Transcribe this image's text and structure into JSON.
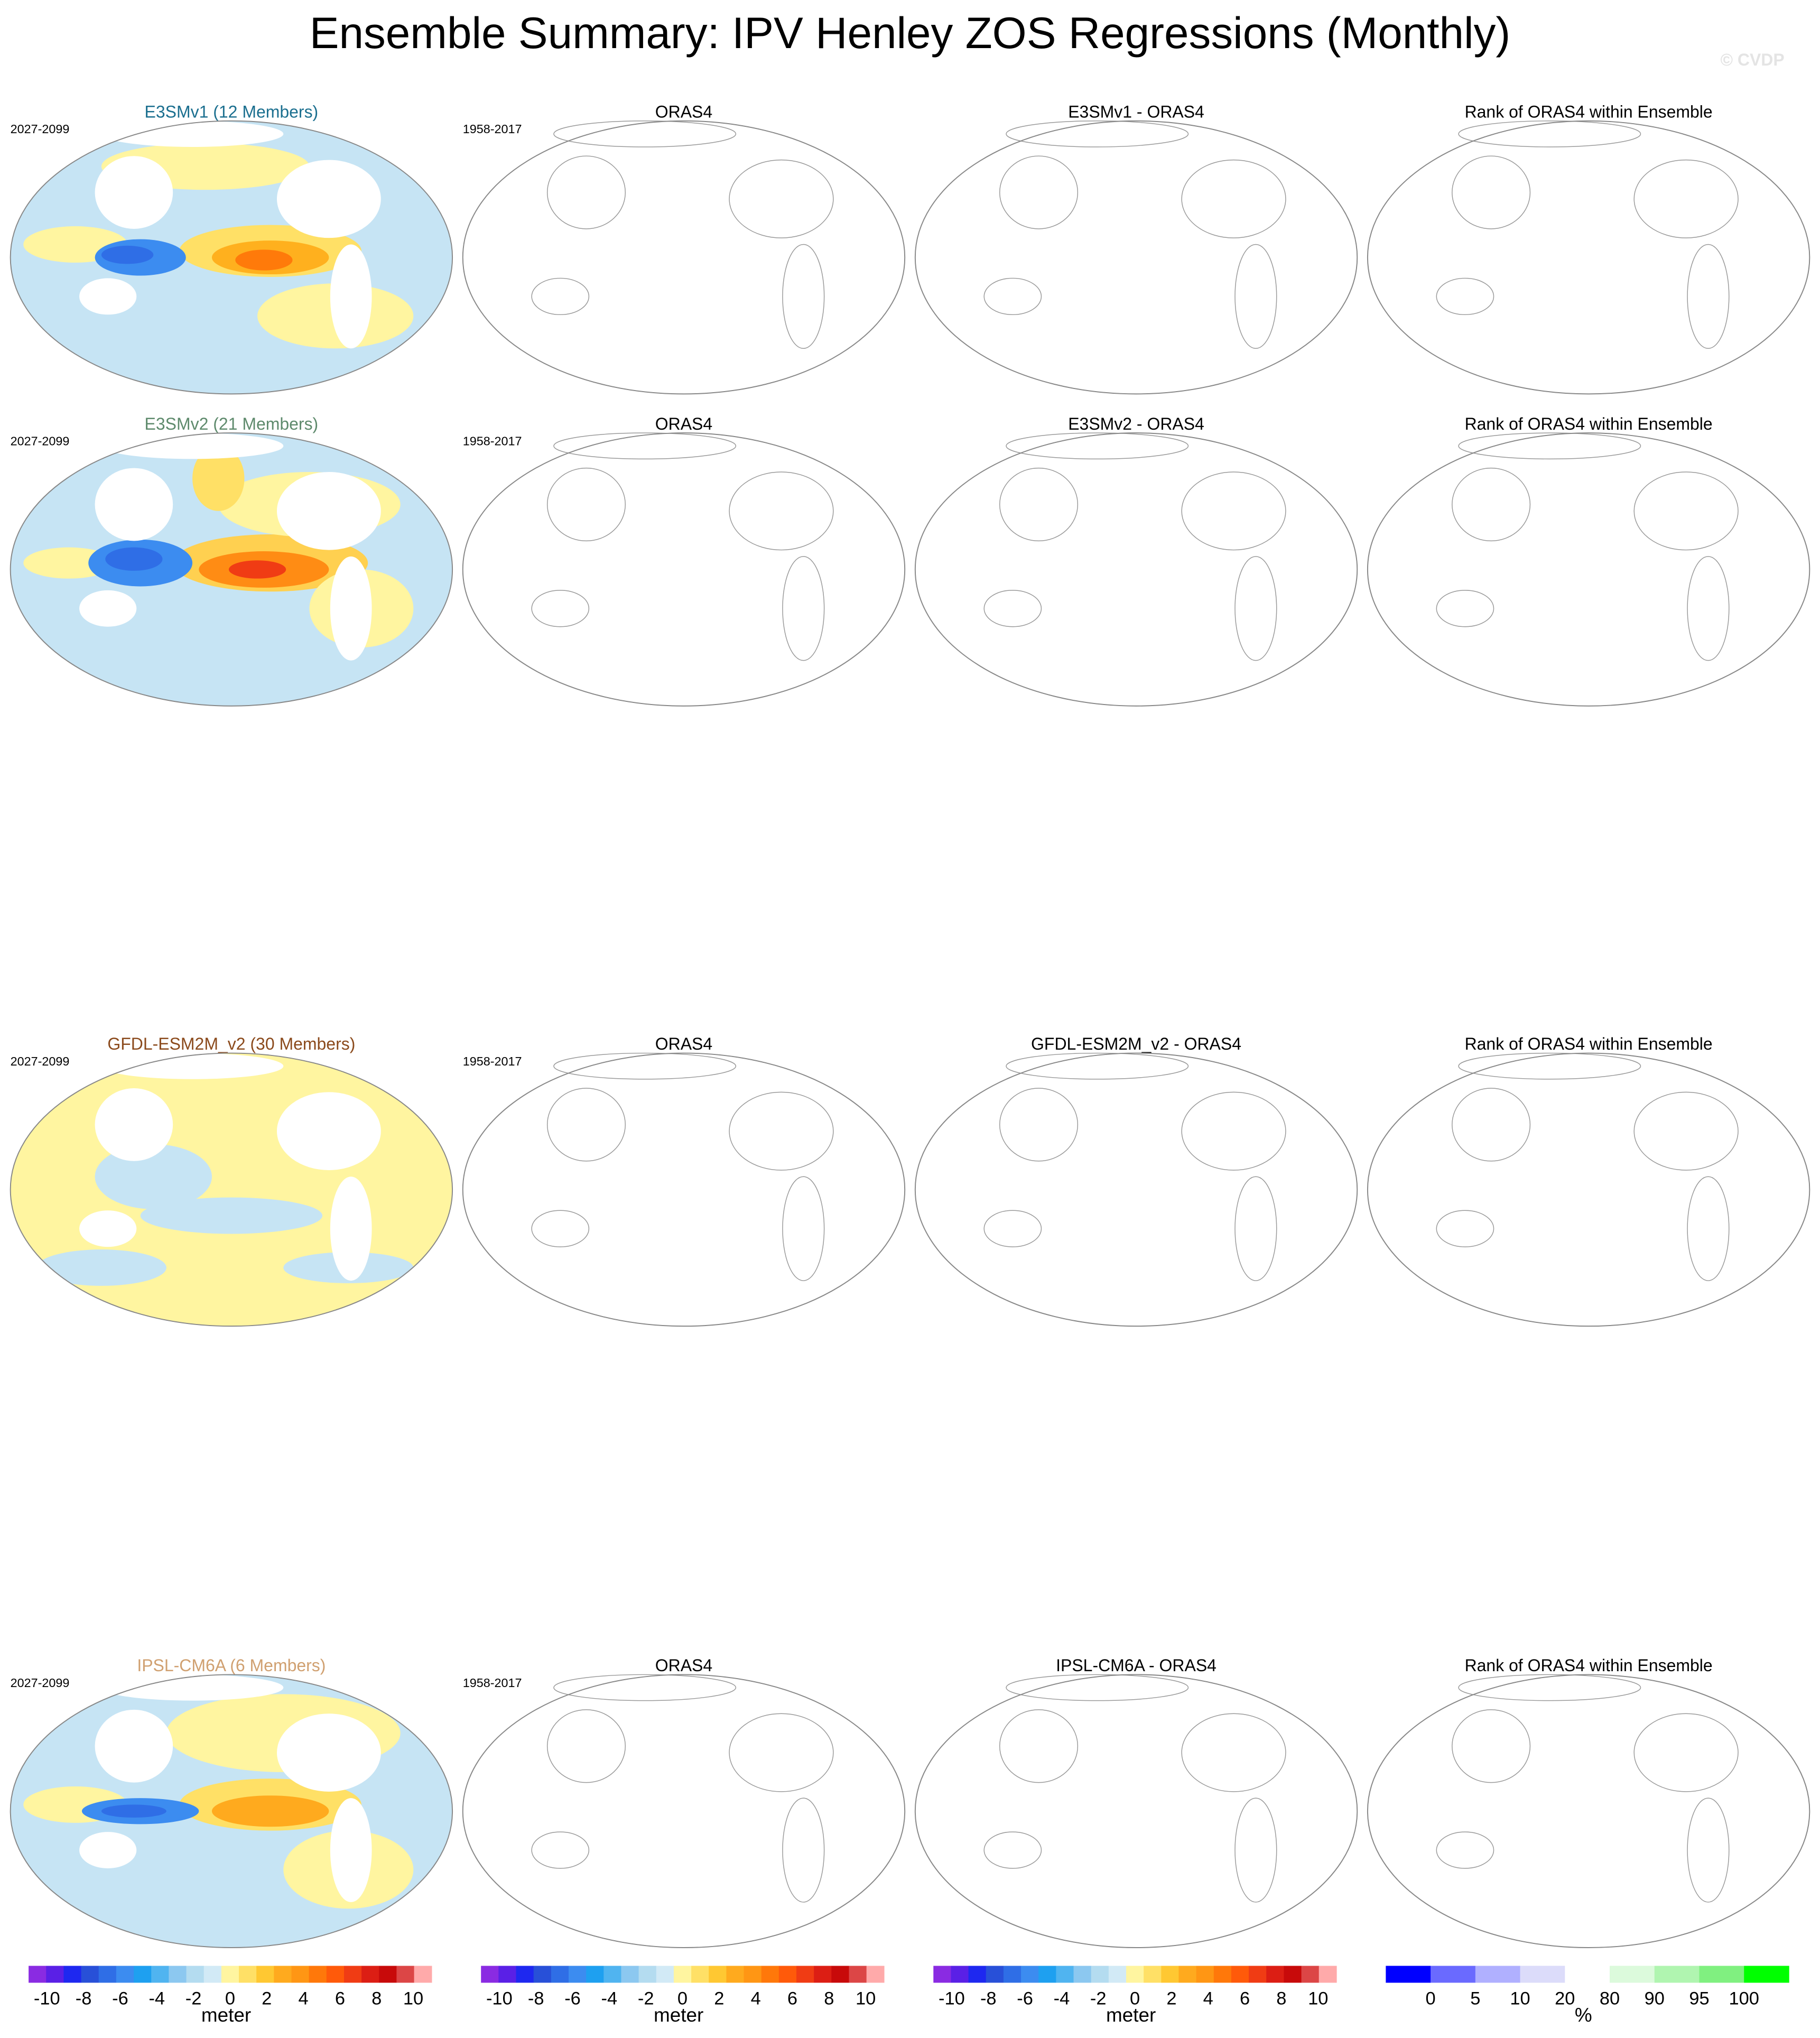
{
  "title": "Ensemble Summary: IPV Henley ZOS Regressions (Monthly)",
  "watermark": "© CVDP",
  "rows": [
    {
      "title_color": "#1b6f8f",
      "panels": [
        {
          "title": "E3SMv1 (12 Members)",
          "period": "2027-2099"
        },
        {
          "title": "ORAS4",
          "period": "1958-2017"
        },
        {
          "title": "E3SMv1 - ORAS4"
        },
        {
          "title": "Rank of ORAS4 within Ensemble"
        }
      ]
    },
    {
      "title_color": "#5e8a6c",
      "panels": [
        {
          "title": "E3SMv2 (21 Members)",
          "period": "2027-2099"
        },
        {
          "title": "ORAS4",
          "period": "1958-2017"
        },
        {
          "title": "E3SMv2 - ORAS4"
        },
        {
          "title": "Rank of ORAS4 within Ensemble"
        }
      ]
    },
    {
      "title_color": "#8b4a1c",
      "panels": [
        {
          "title": "GFDL-ESM2M_v2 (30 Members)",
          "period": "2027-2099"
        },
        {
          "title": "ORAS4",
          "period": "1958-2017"
        },
        {
          "title": "GFDL-ESM2M_v2 - ORAS4"
        },
        {
          "title": "Rank of ORAS4 within Ensemble"
        }
      ]
    },
    {
      "title_color": "#d0a070",
      "panels": [
        {
          "title": "IPSL-CM6A (6 Members)",
          "period": "2027-2099"
        },
        {
          "title": "ORAS4",
          "period": "1958-2017"
        },
        {
          "title": "IPSL-CM6A - ORAS4"
        },
        {
          "title": "Rank of ORAS4 within Ensemble"
        }
      ]
    }
  ],
  "colorbars": [
    {
      "unit": "meter",
      "lim": [
        -11,
        11
      ],
      "ticks": [
        -10,
        -8,
        -6,
        -4,
        -2,
        0,
        2,
        4,
        6,
        8,
        10
      ],
      "colors": [
        "#8a2be2",
        "#5a20e6",
        "#1e28f0",
        "#2850d8",
        "#2f6ee6",
        "#3c8cf0",
        "#1ea0f0",
        "#50b4f0",
        "#8cc8f0",
        "#b4dcf0",
        "#d2eaf6",
        "#fff5a0",
        "#ffe066",
        "#ffc832",
        "#ffaa1e",
        "#ff9614",
        "#ff780a",
        "#ff5a0a",
        "#f03c14",
        "#dc1e14",
        "#c80a0a",
        "#dc4646",
        "#ffaaaa"
      ]
    },
    {
      "unit": "meter",
      "lim": [
        -11,
        11
      ],
      "ticks": [
        -10,
        -8,
        -6,
        -4,
        -2,
        0,
        2,
        4,
        6,
        8,
        10
      ],
      "colors": [
        "#8a2be2",
        "#5a20e6",
        "#1e28f0",
        "#2850d8",
        "#2f6ee6",
        "#3c8cf0",
        "#1ea0f0",
        "#50b4f0",
        "#8cc8f0",
        "#b4dcf0",
        "#d2eaf6",
        "#fff5a0",
        "#ffe066",
        "#ffc832",
        "#ffaa1e",
        "#ff9614",
        "#ff780a",
        "#ff5a0a",
        "#f03c14",
        "#dc1e14",
        "#c80a0a",
        "#dc4646",
        "#ffaaaa"
      ]
    },
    {
      "unit": "meter",
      "lim": [
        -11,
        11
      ],
      "ticks": [
        -10,
        -8,
        -6,
        -4,
        -2,
        0,
        2,
        4,
        6,
        8,
        10
      ],
      "colors": [
        "#8a2be2",
        "#5a20e6",
        "#1e28f0",
        "#2850d8",
        "#2f6ee6",
        "#3c8cf0",
        "#1ea0f0",
        "#50b4f0",
        "#8cc8f0",
        "#b4dcf0",
        "#d2eaf6",
        "#fff5a0",
        "#ffe066",
        "#ffc832",
        "#ffaa1e",
        "#ff9614",
        "#ff780a",
        "#ff5a0a",
        "#f03c14",
        "#dc1e14",
        "#c80a0a",
        "#dc4646",
        "#ffaaaa"
      ]
    },
    {
      "unit": "%",
      "ticks": [
        0,
        5,
        10,
        20,
        80,
        90,
        95,
        100
      ],
      "colors": [
        "#0000ff",
        "#6a6aff",
        "#b0b0ff",
        "#dcdcfa",
        "#ffffff",
        "#dcfadc",
        "#b0f5b0",
        "#80f080",
        "#00ff00"
      ]
    }
  ]
}
